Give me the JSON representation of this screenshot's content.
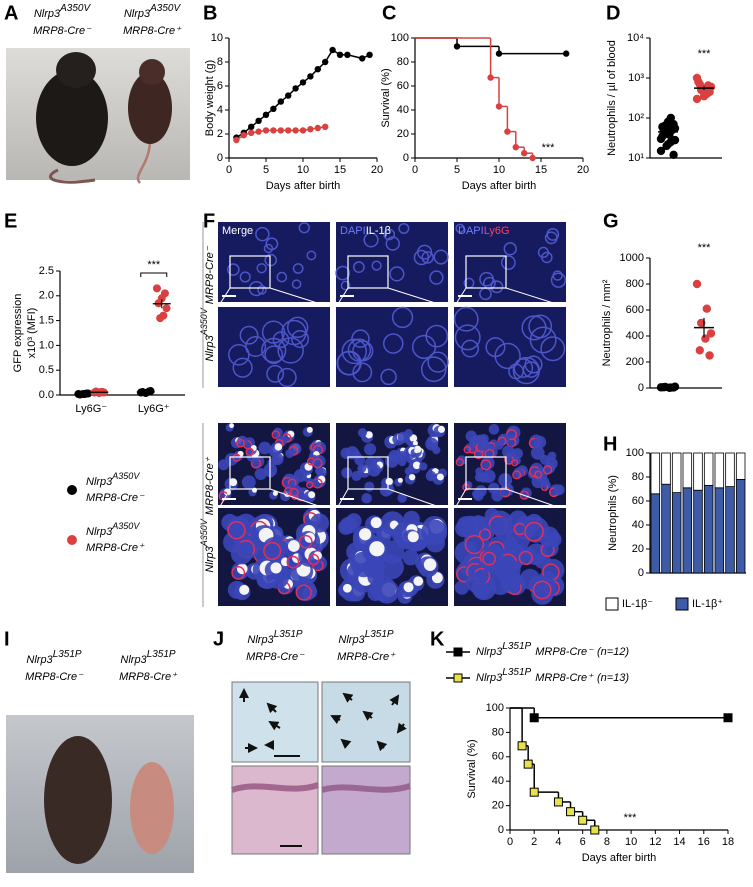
{
  "panel_labels": [
    "A",
    "B",
    "C",
    "D",
    "E",
    "F",
    "G",
    "H",
    "I",
    "J",
    "K"
  ],
  "genotypes": {
    "a350v": {
      "gene": "Nlrp3",
      "allele": "A350V"
    },
    "l351p": {
      "gene": "Nlrp3",
      "allele": "L351P"
    },
    "cre_neg": "MRP8-Cre⁻",
    "cre_pos": "MRP8-Cre⁺"
  },
  "panel_F": {
    "columns": [
      [
        "Merge"
      ],
      [
        "DAPI",
        "IL-1β"
      ],
      [
        "DAPI",
        "Ly6G"
      ]
    ]
  },
  "chart_data": [
    {
      "panel": "B",
      "type": "line",
      "y_label": [
        "Body weight (g)"
      ],
      "x_label": "Days after birth",
      "xlim": [
        0,
        20
      ],
      "xticks": [
        0,
        5,
        10,
        15,
        20
      ],
      "ylim": [
        0,
        10
      ],
      "yticks": [
        0,
        2,
        4,
        6,
        8,
        10
      ],
      "series": [
        {
          "color": "#000000",
          "marker": "circle",
          "x": [
            1,
            2,
            3,
            4,
            5,
            6,
            7,
            8,
            9,
            10,
            11,
            12,
            13,
            14,
            15,
            16,
            18,
            19
          ],
          "values": [
            1.7,
            2.1,
            2.6,
            3.1,
            3.6,
            4.1,
            4.7,
            5.2,
            5.8,
            6.3,
            6.8,
            7.4,
            8.0,
            9.0,
            8.6,
            8.6,
            8.3,
            8.6
          ]
        },
        {
          "color": "#d9403f",
          "marker": "circle",
          "x": [
            1,
            2,
            3,
            4,
            5,
            6,
            7,
            8,
            9,
            10,
            11,
            12,
            13
          ],
          "values": [
            1.5,
            1.9,
            2.1,
            2.2,
            2.3,
            2.3,
            2.3,
            2.3,
            2.3,
            2.3,
            2.4,
            2.5,
            2.6
          ]
        }
      ]
    },
    {
      "panel": "C",
      "type": "step",
      "y_label": [
        "Survival (%)"
      ],
      "x_label": "Days after birth",
      "annotation": "***",
      "xlim": [
        0,
        20
      ],
      "xticks": [
        0,
        5,
        10,
        15,
        20
      ],
      "ylim": [
        0,
        100
      ],
      "yticks": [
        0,
        20,
        40,
        60,
        80,
        100
      ],
      "series": [
        {
          "color": "#000000",
          "marker": "circle",
          "x": [
            0,
            5,
            10,
            18
          ],
          "values": [
            100,
            93,
            87,
            87
          ]
        },
        {
          "color": "#d9403f",
          "marker": "circle",
          "x": [
            0,
            9,
            10,
            11,
            12,
            13,
            14
          ],
          "values": [
            100,
            67,
            43,
            22,
            9,
            4,
            0
          ]
        }
      ]
    },
    {
      "panel": "D",
      "type": "dot",
      "log_scale": true,
      "y_label": [
        "Neutrophils / µl  of blood"
      ],
      "annotation": "***",
      "ylim": [
        10,
        10000
      ],
      "yticks": [
        {
          "value": 10,
          "label": "10¹"
        },
        {
          "value": 100,
          "label": "10²"
        },
        {
          "value": 1000,
          "label": "10³"
        },
        {
          "value": 10000,
          "label": "10⁴"
        }
      ],
      "groups": [
        {
          "color": "#000000",
          "values": [
            30,
            25,
            40,
            55,
            60,
            45,
            70,
            80,
            35,
            50,
            20,
            15,
            100,
            65,
            28,
            38,
            48,
            12,
            22,
            60
          ],
          "mean": 45,
          "sem": 6
        },
        {
          "color": "#d9403f",
          "values": [
            300,
            400,
            500,
            600,
            550,
            700,
            450,
            350,
            800,
            650,
            500,
            1000
          ],
          "mean": 560,
          "sem": 60
        }
      ]
    },
    {
      "panel": "E",
      "type": "dot_category",
      "y_label": [
        "GFP expression",
        "x10³ (MFI)"
      ],
      "annotation": "***",
      "categories": [
        "Ly6G⁻",
        "Ly6G⁺"
      ],
      "ylim": [
        0,
        2.5
      ],
      "yticks": [
        {
          "value": 0,
          "label": "0.0"
        },
        0.5,
        {
          "value": 1,
          "label": "1.0"
        },
        1.5,
        {
          "value": 2,
          "label": "2.0"
        },
        2.5
      ],
      "series": [
        {
          "color": "#000000",
          "values": [
            [
              0.02,
              0.03,
              0.02,
              0.01,
              0.03,
              0.02
            ],
            [
              0.05,
              0.07,
              0.04,
              0.06,
              0.08
            ]
          ],
          "mean": [
            0.02,
            0.06
          ],
          "sem": [
            0.003,
            0.007
          ]
        },
        {
          "color": "#d9403f",
          "values": [
            [
              0.05,
              0.06,
              0.04,
              0.07,
              0.05,
              0.06
            ],
            [
              2.15,
              2.05,
              1.95,
              1.85,
              1.75,
              1.6,
              1.55
            ]
          ],
          "mean": [
            0.055,
            1.84
          ],
          "sem": [
            0.005,
            0.09
          ]
        }
      ]
    },
    {
      "panel": "G",
      "type": "dot",
      "y_label": [
        "Neutrophils / mm²"
      ],
      "annotation": "***",
      "ylim": [
        0,
        1000
      ],
      "yticks": [
        0,
        200,
        400,
        600,
        800,
        1000
      ],
      "groups": [
        {
          "color": "#000000",
          "values": [
            5,
            3,
            8,
            10,
            2,
            6,
            4
          ],
          "mean": 5,
          "sem": 1
        },
        {
          "color": "#d9403f",
          "values": [
            800,
            610,
            500,
            420,
            380,
            290,
            250
          ],
          "mean": 464,
          "sem": 75
        }
      ]
    },
    {
      "panel": "H",
      "type": "stacked_bar",
      "y_label": [
        "Neutrophils (%)"
      ],
      "ylim": [
        0,
        100
      ],
      "yticks": [
        0,
        20,
        40,
        60,
        80,
        100
      ],
      "series": [
        {
          "name": "IL-1β⁺",
          "color": "#3d5ba6",
          "values": [
            66,
            74,
            67,
            71,
            69,
            73,
            71,
            72,
            78
          ]
        },
        {
          "name": "IL-1β⁻",
          "color": "#ffffff",
          "values": [
            34,
            26,
            33,
            29,
            31,
            27,
            29,
            28,
            22
          ]
        }
      ]
    },
    {
      "panel": "K",
      "type": "step",
      "y_label": [
        "Survival (%)"
      ],
      "x_label": "Days after birth",
      "annotation": "***",
      "xlim": [
        0,
        18
      ],
      "xticks": [
        0,
        2,
        4,
        6,
        8,
        10,
        12,
        14,
        16,
        18
      ],
      "ylim": [
        0,
        100
      ],
      "yticks": [
        0,
        20,
        40,
        60,
        80,
        100
      ],
      "series": [
        {
          "color": "#000000",
          "marker": "square",
          "n_label": "(n=12)",
          "x": [
            0,
            2,
            18
          ],
          "values": [
            100,
            92,
            92
          ]
        },
        {
          "color": "#e8e24a",
          "marker": "square",
          "n_label": "(n=13)",
          "x": [
            0,
            1,
            1.5,
            2,
            4,
            5,
            6,
            7
          ],
          "values": [
            100,
            69,
            54,
            31,
            23,
            15,
            8,
            0
          ]
        }
      ]
    }
  ]
}
